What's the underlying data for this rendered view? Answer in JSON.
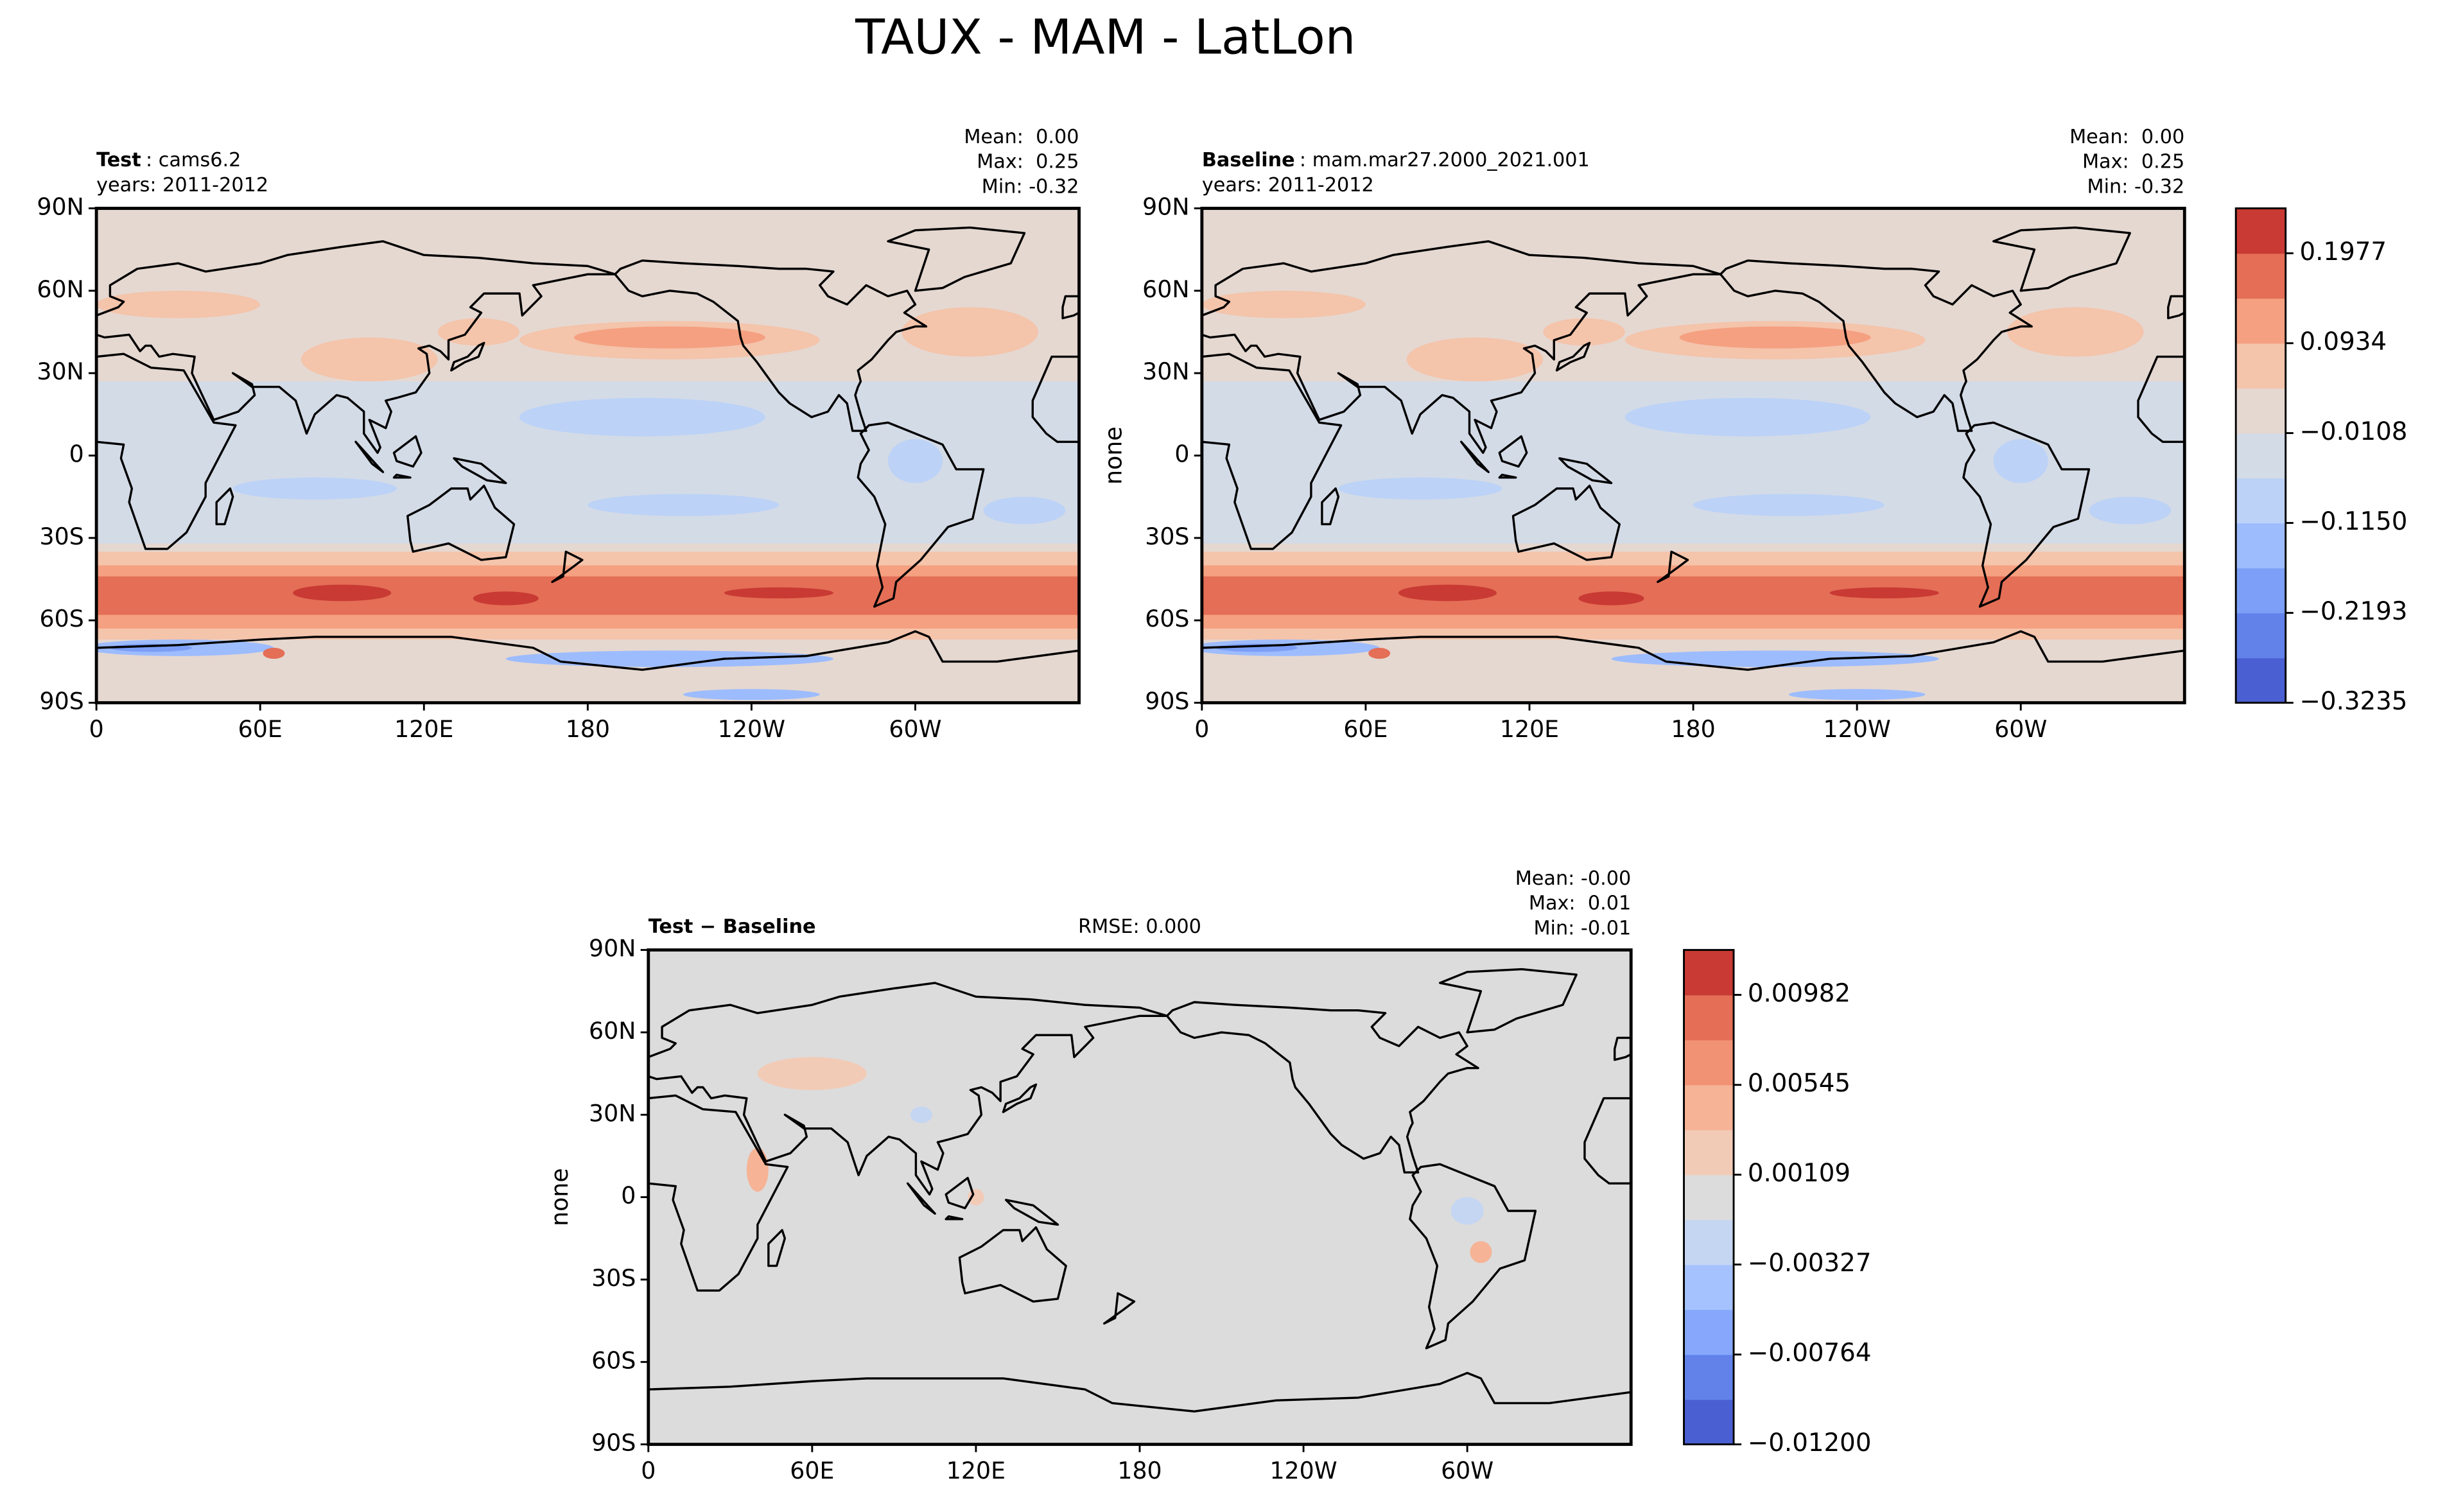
{
  "title": "TAUX - MAM - LatLon",
  "map": {
    "xlim": [
      0,
      360
    ],
    "ylim": [
      -90,
      90
    ],
    "xticks": [
      0,
      {
        "value": 60,
        "label": "60E"
      },
      {
        "value": 120,
        "label": "120E"
      },
      180,
      {
        "value": 240,
        "label": "120W"
      },
      {
        "value": 300,
        "label": "60W"
      }
    ],
    "yticks": [
      {
        "value": 90,
        "label": "90N"
      },
      {
        "value": 60,
        "label": "60N"
      },
      {
        "value": 30,
        "label": "30N"
      },
      0,
      {
        "value": -30,
        "label": "30S"
      },
      {
        "value": -60,
        "label": "60S"
      },
      {
        "value": -90,
        "label": "90S"
      }
    ]
  },
  "panels": [
    {
      "label": "Test",
      "name": ": cams6.2",
      "years": "years: 2011-2012",
      "stats": [
        "Mean:  0.00",
        "Max:  0.25",
        "Min: -0.32"
      ]
    },
    {
      "label": "Baseline",
      "name": ": mam.mar27.2000_2021.001",
      "years": "years: 2011-2012",
      "stats": [
        "Mean:  0.00",
        "Max:  0.25",
        "Min: -0.32"
      ],
      "ylabel": "none"
    },
    {
      "label": "Test − Baseline",
      "rmse": "RMSE: 0.000",
      "stats": [
        "Mean: -0.00",
        "Max:  0.01",
        "Min: -0.01"
      ],
      "ylabel": "none"
    }
  ],
  "colorbars": [
    {
      "lim": [
        -0.3235,
        0.2498
      ],
      "ticks": [
        {
          "value": -0.3235,
          "label": "−0.3235"
        },
        {
          "value": -0.2193,
          "label": "−0.2193"
        },
        {
          "value": -0.115,
          "label": "−0.1150"
        },
        {
          "value": -0.0108,
          "label": "−0.0108"
        },
        0.0934,
        0.1977
      ],
      "colors": [
        "#4a5fd1",
        "#6282ea",
        "#7d9ff7",
        "#9dbcfd",
        "#bcd2f7",
        "#d3dbe7",
        "#e5d8d1",
        "#f4c4ab",
        "#f5a081",
        "#e46e56",
        "#c83a33"
      ]
    },
    {
      "lim": [
        -0.012,
        0.012
      ],
      "ticks": [
        {
          "value": -0.012,
          "label": "−0.01200"
        },
        {
          "value": -0.00764,
          "label": "−0.00764"
        },
        {
          "value": -0.00327,
          "label": "−0.00327"
        },
        0.00109,
        0.00545,
        0.00982
      ],
      "colors": [
        "#4a5fd1",
        "#6282ea",
        "#86a7fb",
        "#a5c2fe",
        "#c5d6f2",
        "#dcdcdc",
        "#f2cbb7",
        "#f6b396",
        "#f29274",
        "#e46e56",
        "#c83a33"
      ]
    }
  ]
}
